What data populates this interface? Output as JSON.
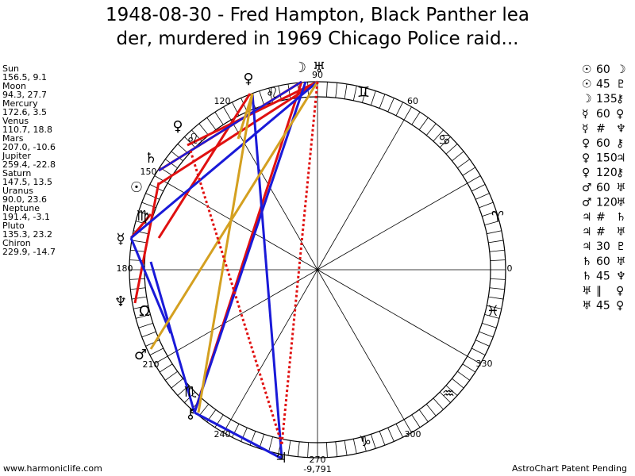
{
  "title": [
    "1948-08-30 - Fred Hampton, Black Panther lea",
    "der, murdered in 1969 Chicago Police raid..."
  ],
  "planets": [
    {
      "name": "Sun",
      "position": "156.5, 9.1"
    },
    {
      "name": "Moon",
      "position": "94.3, 27.7"
    },
    {
      "name": "Mercury",
      "position": "172.6, 3.5"
    },
    {
      "name": "Venus",
      "position": "110.7, 18.8"
    },
    {
      "name": "Mars",
      "position": "207.0, -10.6"
    },
    {
      "name": "Jupiter",
      "position": "259.4, -22.8"
    },
    {
      "name": "Saturn",
      "position": "147.5, 13.5"
    },
    {
      "name": "Uranus",
      "position": "90.0, 23.6"
    },
    {
      "name": "Neptune",
      "position": "191.4, -3.1"
    },
    {
      "name": "Pluto",
      "position": "135.3, 23.2"
    },
    {
      "name": "Chiron",
      "position": "229.9, -14.7"
    }
  ],
  "aspects": [
    [
      "☉",
      "60",
      "☽"
    ],
    [
      "☉",
      "45",
      "♇"
    ],
    [
      "☽",
      "135",
      "⚷"
    ],
    [
      "☿",
      "60",
      "♀"
    ],
    [
      "☿",
      "#",
      "♆"
    ],
    [
      "♀",
      "60",
      "⚷"
    ],
    [
      "♀",
      "150",
      "♃"
    ],
    [
      "♀",
      "120",
      "⚷"
    ],
    [
      "♂",
      "60",
      "♅"
    ],
    [
      "♂",
      "120",
      "♅"
    ],
    [
      "♃",
      "#",
      "♄"
    ],
    [
      "♃",
      "#",
      "♅"
    ],
    [
      "♃",
      "30",
      "♇"
    ],
    [
      "♄",
      "60",
      "♅"
    ],
    [
      "♄",
      "45",
      "♆"
    ],
    [
      "♅",
      "∥",
      "♀"
    ],
    [
      "♅",
      "45",
      "♀"
    ]
  ],
  "wheel": {
    "degree_labels": [
      "90",
      "60",
      "120",
      "150",
      "180",
      "210",
      "240",
      "270",
      "300",
      "330",
      "0"
    ],
    "bottom_label": "-9,791",
    "glyphs": [
      "☽",
      "♅",
      "♀",
      "♌",
      "♀",
      "♌",
      "♄",
      "☉",
      "♍",
      "☿",
      "♆",
      "Ω",
      "♂",
      "♏",
      "⚷",
      "♃",
      "♑",
      "♒",
      "♓",
      "♈",
      "♋",
      "♊"
    ]
  },
  "footer": {
    "left": "www.harmoniclife.com",
    "right": "AstroChart Patent Pending"
  }
}
